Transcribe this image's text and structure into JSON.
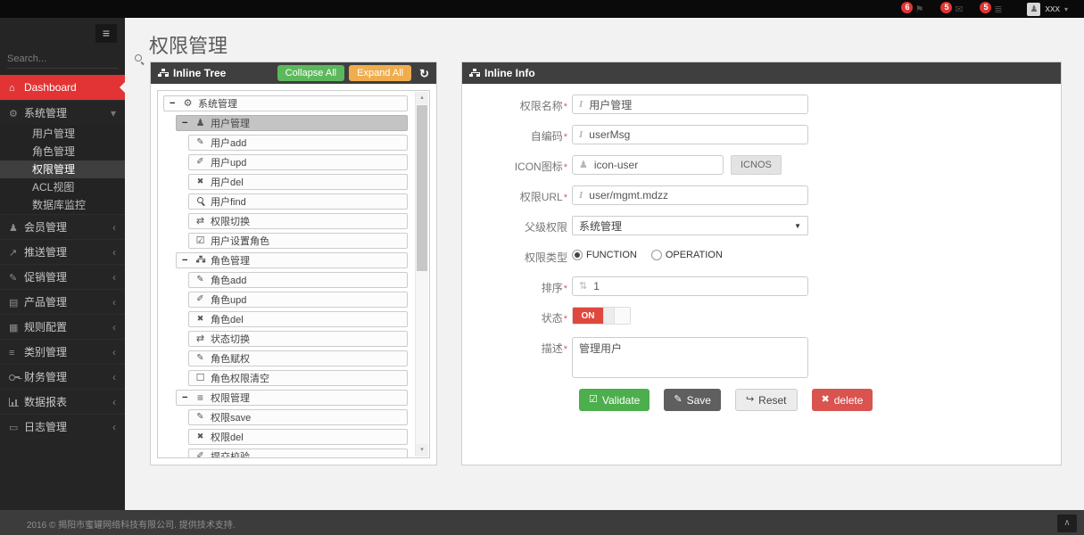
{
  "topbar": {
    "notifications": [
      {
        "icon": "flag-icon",
        "count": "6"
      },
      {
        "icon": "envelope-icon",
        "count": "5"
      },
      {
        "icon": "tasks-icon",
        "count": "5"
      }
    ],
    "user": {
      "name": "xxx"
    }
  },
  "sidebar": {
    "search_placeholder": "Search...",
    "items": {
      "dashboard": "Dashboard",
      "system": "系统管理",
      "system_children": [
        "用户管理",
        "角色管理",
        "权限管理",
        "ACL视图",
        "数据库监控"
      ],
      "active_child": "权限管理",
      "groups": [
        "会员管理",
        "推送管理",
        "促销管理",
        "产品管理",
        "规则配置",
        "类别管理",
        "财务管理",
        "数据报表",
        "日志管理"
      ]
    }
  },
  "page": {
    "title": "权限管理"
  },
  "tree_panel": {
    "title": "Inline Tree",
    "collapse_all": "Collapse All",
    "expand_all": "Expand All",
    "nodes": [
      {
        "level": 1,
        "label": "系统管理",
        "icon": "cogs-icon",
        "expanded": true
      },
      {
        "level": 2,
        "label": "用户管理",
        "icon": "user-icon",
        "expanded": true,
        "selected": true
      },
      {
        "level": 3,
        "label": "用户add",
        "icon": "pencil-icon"
      },
      {
        "level": 3,
        "label": "用户upd",
        "icon": "edit-icon"
      },
      {
        "level": 3,
        "label": "用户del",
        "icon": "x-icon"
      },
      {
        "level": 3,
        "label": "用户find",
        "icon": "search-icon"
      },
      {
        "level": 3,
        "label": "权限切换",
        "icon": "switch-icon"
      },
      {
        "level": 3,
        "label": "用户设置角色",
        "icon": "check-square-icon"
      },
      {
        "level": 2,
        "label": "角色管理",
        "icon": "sitemap-icon",
        "expanded": true
      },
      {
        "level": 3,
        "label": "角色add",
        "icon": "pencil-icon"
      },
      {
        "level": 3,
        "label": "角色upd",
        "icon": "edit-icon"
      },
      {
        "level": 3,
        "label": "角色del",
        "icon": "x-icon"
      },
      {
        "level": 3,
        "label": "状态切换",
        "icon": "switch-icon"
      },
      {
        "level": 3,
        "label": "角色赋权",
        "icon": "pencil-icon"
      },
      {
        "level": 3,
        "label": "角色权限清空",
        "icon": "square-icon"
      },
      {
        "level": 2,
        "label": "权限管理",
        "icon": "bars-icon",
        "expanded": true
      },
      {
        "level": 3,
        "label": "权限save",
        "icon": "pencil-icon"
      },
      {
        "level": 3,
        "label": "权限del",
        "icon": "x-icon"
      },
      {
        "level": 3,
        "label": "提交校验",
        "icon": "edit-icon"
      }
    ]
  },
  "info_panel": {
    "title": "Inline Info",
    "required_mark": "*",
    "fields": {
      "name": {
        "label": "权限名称",
        "value": "用户管理"
      },
      "code": {
        "label": "自编码",
        "value": "userMsg"
      },
      "icon": {
        "label": "ICON图标",
        "value": "icon-user",
        "button": "ICNOS"
      },
      "url": {
        "label": "权限URL",
        "value": "user/mgmt.mdzz"
      },
      "parent": {
        "label": "父级权限",
        "value": "系统管理"
      },
      "type": {
        "label": "权限类型",
        "options": [
          "FUNCTION",
          "OPERATION"
        ],
        "selected": "FUNCTION"
      },
      "sort": {
        "label": "排序",
        "value": "1"
      },
      "status": {
        "label": "状态",
        "value": "ON"
      },
      "desc": {
        "label": "描述",
        "value": "管理用户"
      }
    },
    "buttons": {
      "validate": "Validate",
      "save": "Save",
      "reset": "Reset",
      "delete": "delete"
    }
  },
  "footer": {
    "copyright": "2016 © 揭阳市蜜罐网络科技有限公司. 提供技术支持."
  }
}
